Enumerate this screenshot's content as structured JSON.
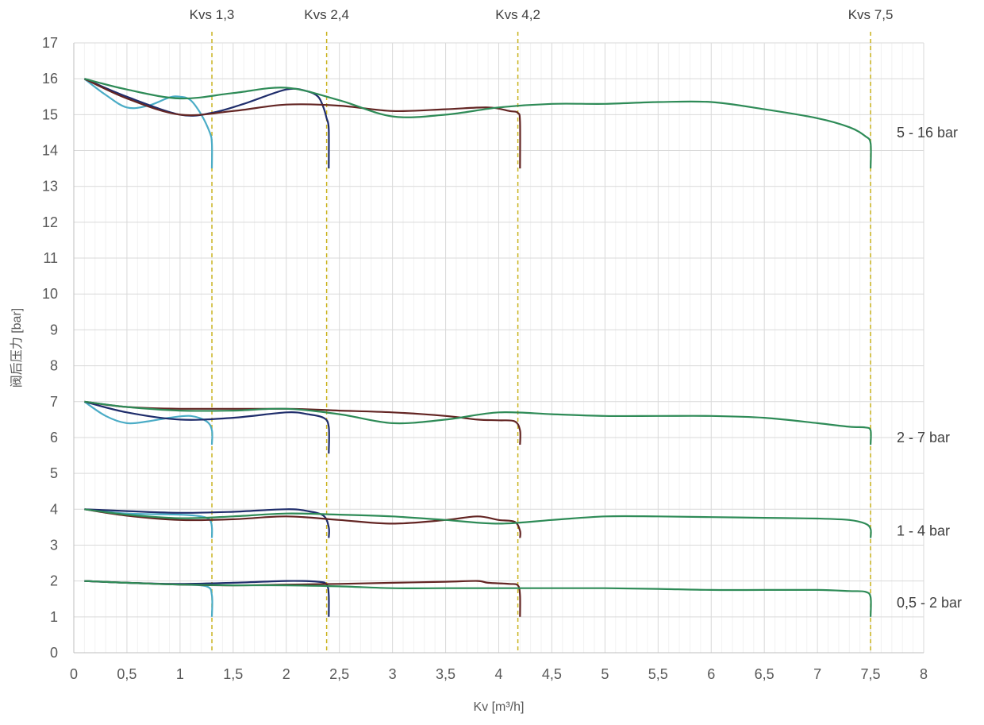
{
  "chart_data": {
    "type": "line",
    "xlabel": "Kv [m³/h]",
    "ylabel": "阀后压力 [bar]",
    "xlim": [
      0,
      8
    ],
    "ylim": [
      0,
      17
    ],
    "x_ticks": [
      "0",
      "0,5",
      "1",
      "1,5",
      "2",
      "2,5",
      "3",
      "3,5",
      "4",
      "4,5",
      "5",
      "5,5",
      "6",
      "6,5",
      "7",
      "7,5",
      "8"
    ],
    "y_ticks": [
      "0",
      "1",
      "2",
      "3",
      "4",
      "5",
      "6",
      "7",
      "8",
      "9",
      "10",
      "11",
      "12",
      "13",
      "14",
      "15",
      "16",
      "17"
    ],
    "grid": true,
    "kvs_markers": [
      {
        "label": "Kvs 1,3",
        "x": 1.3
      },
      {
        "label": "Kvs 2,4",
        "x": 2.38
      },
      {
        "label": "Kvs 4,2",
        "x": 4.18
      },
      {
        "label": "Kvs 7,5",
        "x": 7.5
      }
    ],
    "range_labels": [
      {
        "label": "5 - 16 bar",
        "y": 14.5
      },
      {
        "label": "2 - 7 bar",
        "y": 6
      },
      {
        "label": "1 - 4 bar",
        "y": 3.4
      },
      {
        "label": "0,5 - 2 bar",
        "y": 1.4
      }
    ],
    "series_colors": {
      "kvs13": "#4bacc6",
      "kvs24": "#1f2d6b",
      "kvs42": "#632523",
      "kvs75": "#2e8b57"
    },
    "series": [
      {
        "group": "5 - 16 bar",
        "kvs": "1,3",
        "color": "#4bacc6",
        "x": [
          0.1,
          0.3,
          0.5,
          0.7,
          0.9,
          1.0,
          1.1,
          1.2,
          1.28,
          1.3,
          1.3
        ],
        "y": [
          16,
          15.55,
          15.2,
          15.25,
          15.48,
          15.5,
          15.4,
          15.0,
          14.5,
          14.2,
          13.5
        ]
      },
      {
        "group": "5 - 16 bar",
        "kvs": "2,4",
        "color": "#1f2d6b",
        "x": [
          0.1,
          0.5,
          1.0,
          1.3,
          1.6,
          2.0,
          2.2,
          2.3,
          2.35,
          2.38,
          2.4,
          2.4
        ],
        "y": [
          16,
          15.5,
          15.0,
          15.05,
          15.3,
          15.7,
          15.65,
          15.5,
          15.2,
          14.9,
          14.6,
          13.5
        ]
      },
      {
        "group": "5 - 16 bar",
        "kvs": "4,2",
        "color": "#632523",
        "x": [
          0.1,
          0.5,
          1.0,
          1.5,
          2.0,
          2.5,
          3.0,
          3.5,
          3.9,
          4.1,
          4.18,
          4.2,
          4.2
        ],
        "y": [
          16,
          15.45,
          15.0,
          15.1,
          15.28,
          15.25,
          15.1,
          15.15,
          15.2,
          15.1,
          15.05,
          14.8,
          13.5
        ]
      },
      {
        "group": "5 - 16 bar",
        "kvs": "7,5",
        "color": "#2e8b57",
        "x": [
          0.1,
          0.5,
          1.0,
          1.5,
          2.0,
          2.5,
          3.0,
          3.5,
          4.0,
          4.5,
          5.0,
          5.5,
          6.0,
          6.5,
          7.0,
          7.3,
          7.45,
          7.5,
          7.5
        ],
        "y": [
          16,
          15.7,
          15.45,
          15.6,
          15.75,
          15.4,
          14.95,
          15.0,
          15.2,
          15.3,
          15.3,
          15.35,
          15.35,
          15.15,
          14.9,
          14.65,
          14.4,
          14.2,
          13.5
        ]
      },
      {
        "group": "2 - 7 bar",
        "kvs": "1,3",
        "color": "#4bacc6",
        "x": [
          0.1,
          0.3,
          0.5,
          0.7,
          0.9,
          1.1,
          1.25,
          1.3,
          1.3
        ],
        "y": [
          7.0,
          6.6,
          6.4,
          6.45,
          6.55,
          6.6,
          6.45,
          6.2,
          5.8
        ]
      },
      {
        "group": "2 - 7 bar",
        "kvs": "2,4",
        "color": "#1f2d6b",
        "x": [
          0.1,
          0.5,
          1.0,
          1.5,
          2.0,
          2.2,
          2.35,
          2.4,
          2.4
        ],
        "y": [
          7.0,
          6.7,
          6.5,
          6.55,
          6.7,
          6.65,
          6.55,
          6.3,
          5.55
        ]
      },
      {
        "group": "2 - 7 bar",
        "kvs": "4,2",
        "color": "#632523",
        "x": [
          0.1,
          0.5,
          1.0,
          2.0,
          2.5,
          3.0,
          3.5,
          3.8,
          4.0,
          4.15,
          4.2,
          4.2
        ],
        "y": [
          7.0,
          6.85,
          6.8,
          6.8,
          6.75,
          6.7,
          6.6,
          6.5,
          6.48,
          6.45,
          6.2,
          5.8
        ]
      },
      {
        "group": "2 - 7 bar",
        "kvs": "7,5",
        "color": "#2e8b57",
        "x": [
          0.1,
          0.5,
          1.0,
          1.5,
          2.0,
          2.5,
          3.0,
          3.5,
          4.0,
          4.5,
          5.0,
          5.5,
          6.0,
          6.5,
          7.0,
          7.3,
          7.45,
          7.5,
          7.5
        ],
        "y": [
          7.0,
          6.85,
          6.75,
          6.75,
          6.8,
          6.65,
          6.4,
          6.5,
          6.7,
          6.65,
          6.6,
          6.6,
          6.6,
          6.55,
          6.4,
          6.3,
          6.28,
          6.2,
          5.8
        ]
      },
      {
        "group": "1 - 4 bar",
        "kvs": "1,3",
        "color": "#4bacc6",
        "x": [
          0.1,
          0.5,
          1.0,
          1.2,
          1.28,
          1.3,
          1.3
        ],
        "y": [
          4.0,
          3.88,
          3.85,
          3.8,
          3.7,
          3.5,
          3.2
        ]
      },
      {
        "group": "1 - 4 bar",
        "kvs": "2,4",
        "color": "#1f2d6b",
        "x": [
          0.1,
          0.5,
          1.0,
          1.5,
          2.0,
          2.2,
          2.35,
          2.4,
          2.4
        ],
        "y": [
          4.0,
          3.95,
          3.9,
          3.93,
          4.0,
          3.95,
          3.82,
          3.5,
          3.2
        ]
      },
      {
        "group": "1 - 4 bar",
        "kvs": "4,2",
        "color": "#632523",
        "x": [
          0.1,
          0.5,
          1.0,
          1.5,
          2.0,
          2.5,
          3.0,
          3.5,
          3.8,
          4.0,
          4.15,
          4.2,
          4.2
        ],
        "y": [
          4.0,
          3.82,
          3.7,
          3.72,
          3.8,
          3.7,
          3.6,
          3.7,
          3.8,
          3.7,
          3.65,
          3.4,
          3.2
        ]
      },
      {
        "group": "1 - 4 bar",
        "kvs": "7,5",
        "color": "#2e8b57",
        "x": [
          0.1,
          0.5,
          1.0,
          1.5,
          2.0,
          2.5,
          3.0,
          3.5,
          4.0,
          4.5,
          5.0,
          5.5,
          6.0,
          6.5,
          7.0,
          7.3,
          7.45,
          7.5,
          7.5
        ],
        "y": [
          4.0,
          3.85,
          3.75,
          3.8,
          3.88,
          3.85,
          3.8,
          3.7,
          3.6,
          3.7,
          3.8,
          3.8,
          3.78,
          3.76,
          3.74,
          3.7,
          3.6,
          3.45,
          3.2
        ]
      },
      {
        "group": "0,5 - 2 bar",
        "kvs": "1,3",
        "color": "#4bacc6",
        "x": [
          0.1,
          0.5,
          1.0,
          1.25,
          1.3,
          1.3
        ],
        "y": [
          2.0,
          1.95,
          1.9,
          1.85,
          1.6,
          1.0
        ]
      },
      {
        "group": "0,5 - 2 bar",
        "kvs": "2,4",
        "color": "#1f2d6b",
        "x": [
          0.1,
          0.5,
          1.0,
          1.5,
          2.0,
          2.3,
          2.38,
          2.4,
          2.4
        ],
        "y": [
          2.0,
          1.95,
          1.92,
          1.95,
          2.0,
          1.98,
          1.9,
          1.6,
          1.0
        ]
      },
      {
        "group": "0,5 - 2 bar",
        "kvs": "4,2",
        "color": "#632523",
        "x": [
          0.1,
          0.5,
          1.0,
          1.5,
          2.0,
          2.5,
          3.0,
          3.5,
          3.8,
          3.9,
          4.1,
          4.18,
          4.2,
          4.2
        ],
        "y": [
          2.0,
          1.95,
          1.9,
          1.88,
          1.9,
          1.92,
          1.95,
          1.98,
          2.0,
          1.95,
          1.92,
          1.88,
          1.6,
          1.0
        ]
      },
      {
        "group": "0,5 - 2 bar",
        "kvs": "7,5",
        "color": "#2e8b57",
        "x": [
          0.1,
          0.5,
          1.0,
          1.5,
          2.0,
          2.5,
          3.0,
          3.5,
          4.0,
          4.5,
          5.0,
          5.5,
          6.0,
          6.5,
          7.0,
          7.3,
          7.45,
          7.5,
          7.5
        ],
        "y": [
          2.0,
          1.95,
          1.9,
          1.88,
          1.88,
          1.85,
          1.8,
          1.8,
          1.8,
          1.8,
          1.8,
          1.78,
          1.75,
          1.75,
          1.75,
          1.72,
          1.7,
          1.55,
          1.0
        ]
      }
    ]
  }
}
